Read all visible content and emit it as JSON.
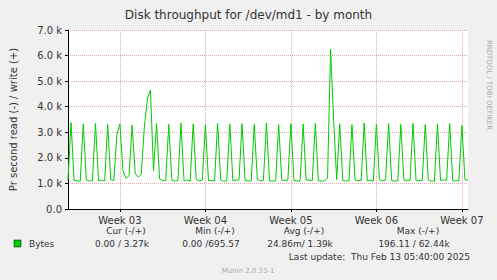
{
  "chart_data": {
    "type": "line",
    "title": "Disk throughput for /dev/md1 - by month",
    "y_label": "Pr second read (-) / write (+)",
    "categories": [
      null,
      null,
      null,
      null,
      null,
      null,
      null,
      null,
      null,
      null,
      null,
      null,
      null,
      null,
      null,
      null,
      null,
      "Week 03",
      null,
      null,
      null,
      null,
      null,
      null,
      null,
      null,
      null,
      null,
      null,
      null,
      null,
      null,
      null,
      null,
      null,
      null,
      null,
      null,
      null,
      null,
      null,
      null,
      null,
      null,
      null,
      "Week 04",
      null,
      null,
      null,
      null,
      null,
      null,
      null,
      null,
      null,
      null,
      null,
      null,
      null,
      null,
      null,
      null,
      null,
      null,
      null,
      null,
      null,
      null,
      null,
      null,
      null,
      null,
      null,
      "Week 05",
      null,
      null,
      null,
      null,
      null,
      null,
      null,
      null,
      null,
      null,
      null,
      null,
      null,
      null,
      null,
      null,
      null,
      null,
      null,
      null,
      null,
      null,
      null,
      null,
      null,
      null,
      null,
      "Week 06",
      null,
      null,
      null,
      null,
      null,
      null,
      null,
      null,
      null,
      null,
      null,
      null,
      null,
      null,
      null,
      null,
      null,
      null,
      null,
      null,
      null,
      null,
      null,
      null,
      null,
      null,
      null,
      "Week 07",
      null,
      null
    ],
    "series": [
      {
        "name": "Bytes",
        "color": "#00cc00",
        "values": [
          1150,
          3380,
          1120,
          1100,
          1080,
          3320,
          1140,
          1090,
          1120,
          3350,
          1100,
          1130,
          1100,
          3300,
          1150,
          1110,
          2900,
          3330,
          1500,
          1200,
          1300,
          3280,
          1400,
          1250,
          1350,
          3200,
          4300,
          4650,
          1500,
          3340,
          1180,
          1120,
          1100,
          3310,
          1130,
          1090,
          1120,
          3360,
          1100,
          1140,
          1090,
          3330,
          1150,
          1100,
          1130,
          3300,
          1110,
          1120,
          1100,
          3350,
          1140,
          1080,
          1110,
          3320,
          1100,
          1130,
          1140,
          3340,
          1120,
          1100,
          1090,
          3310,
          1150,
          1110,
          1120,
          3370,
          1100,
          1090,
          1100,
          3300,
          1130,
          1120,
          1130,
          3340,
          1110,
          1100,
          1080,
          3320,
          1140,
          1130,
          1110,
          3350,
          1100,
          1090,
          1100,
          1200,
          6250,
          3450,
          1150,
          3330,
          1120,
          1100,
          1100,
          3300,
          1140,
          1110,
          1120,
          3360,
          1100,
          1130,
          1090,
          3320,
          1150,
          1100,
          1130,
          3340,
          1110,
          1090,
          1100,
          3310,
          1130,
          1120,
          1120,
          3350,
          1100,
          1110,
          1110,
          3300,
          1140,
          1090,
          1090,
          3330,
          1120,
          1130,
          1130,
          3340,
          1100,
          1100,
          1100,
          3270,
          1150,
          1120
        ]
      }
    ],
    "ylim": [
      0,
      7000
    ],
    "yticks": [
      {
        "value": 0,
        "label": "0.0"
      },
      {
        "value": 1000,
        "label": "1.0 k"
      },
      {
        "value": 2000,
        "label": "2.0 k"
      },
      {
        "value": 3000,
        "label": "3.0 k"
      },
      {
        "value": 4000,
        "label": "4.0 k"
      },
      {
        "value": 5000,
        "label": "5.0 k"
      },
      {
        "value": 6000,
        "label": "6.0 k"
      },
      {
        "value": 7000,
        "label": "7.0 k"
      }
    ],
    "grid": true,
    "side_text": "RRDTOOL / TOBI OETIKER",
    "legend_table": {
      "columns": [
        "Cur (-/+)",
        "Min (-/+)",
        "Avg (-/+)",
        "Max (-/+)"
      ],
      "rows": [
        {
          "label": "Bytes",
          "cells": [
            "0.00 / 3.27k",
            "0.00 /695.57",
            "24.86m/ 1.39k",
            "196.11 / 62.44k"
          ]
        }
      ]
    },
    "last_update": "Last update:  Thu Feb 13 05:40:00 2025",
    "version": "Munin 2.0.33-1"
  }
}
